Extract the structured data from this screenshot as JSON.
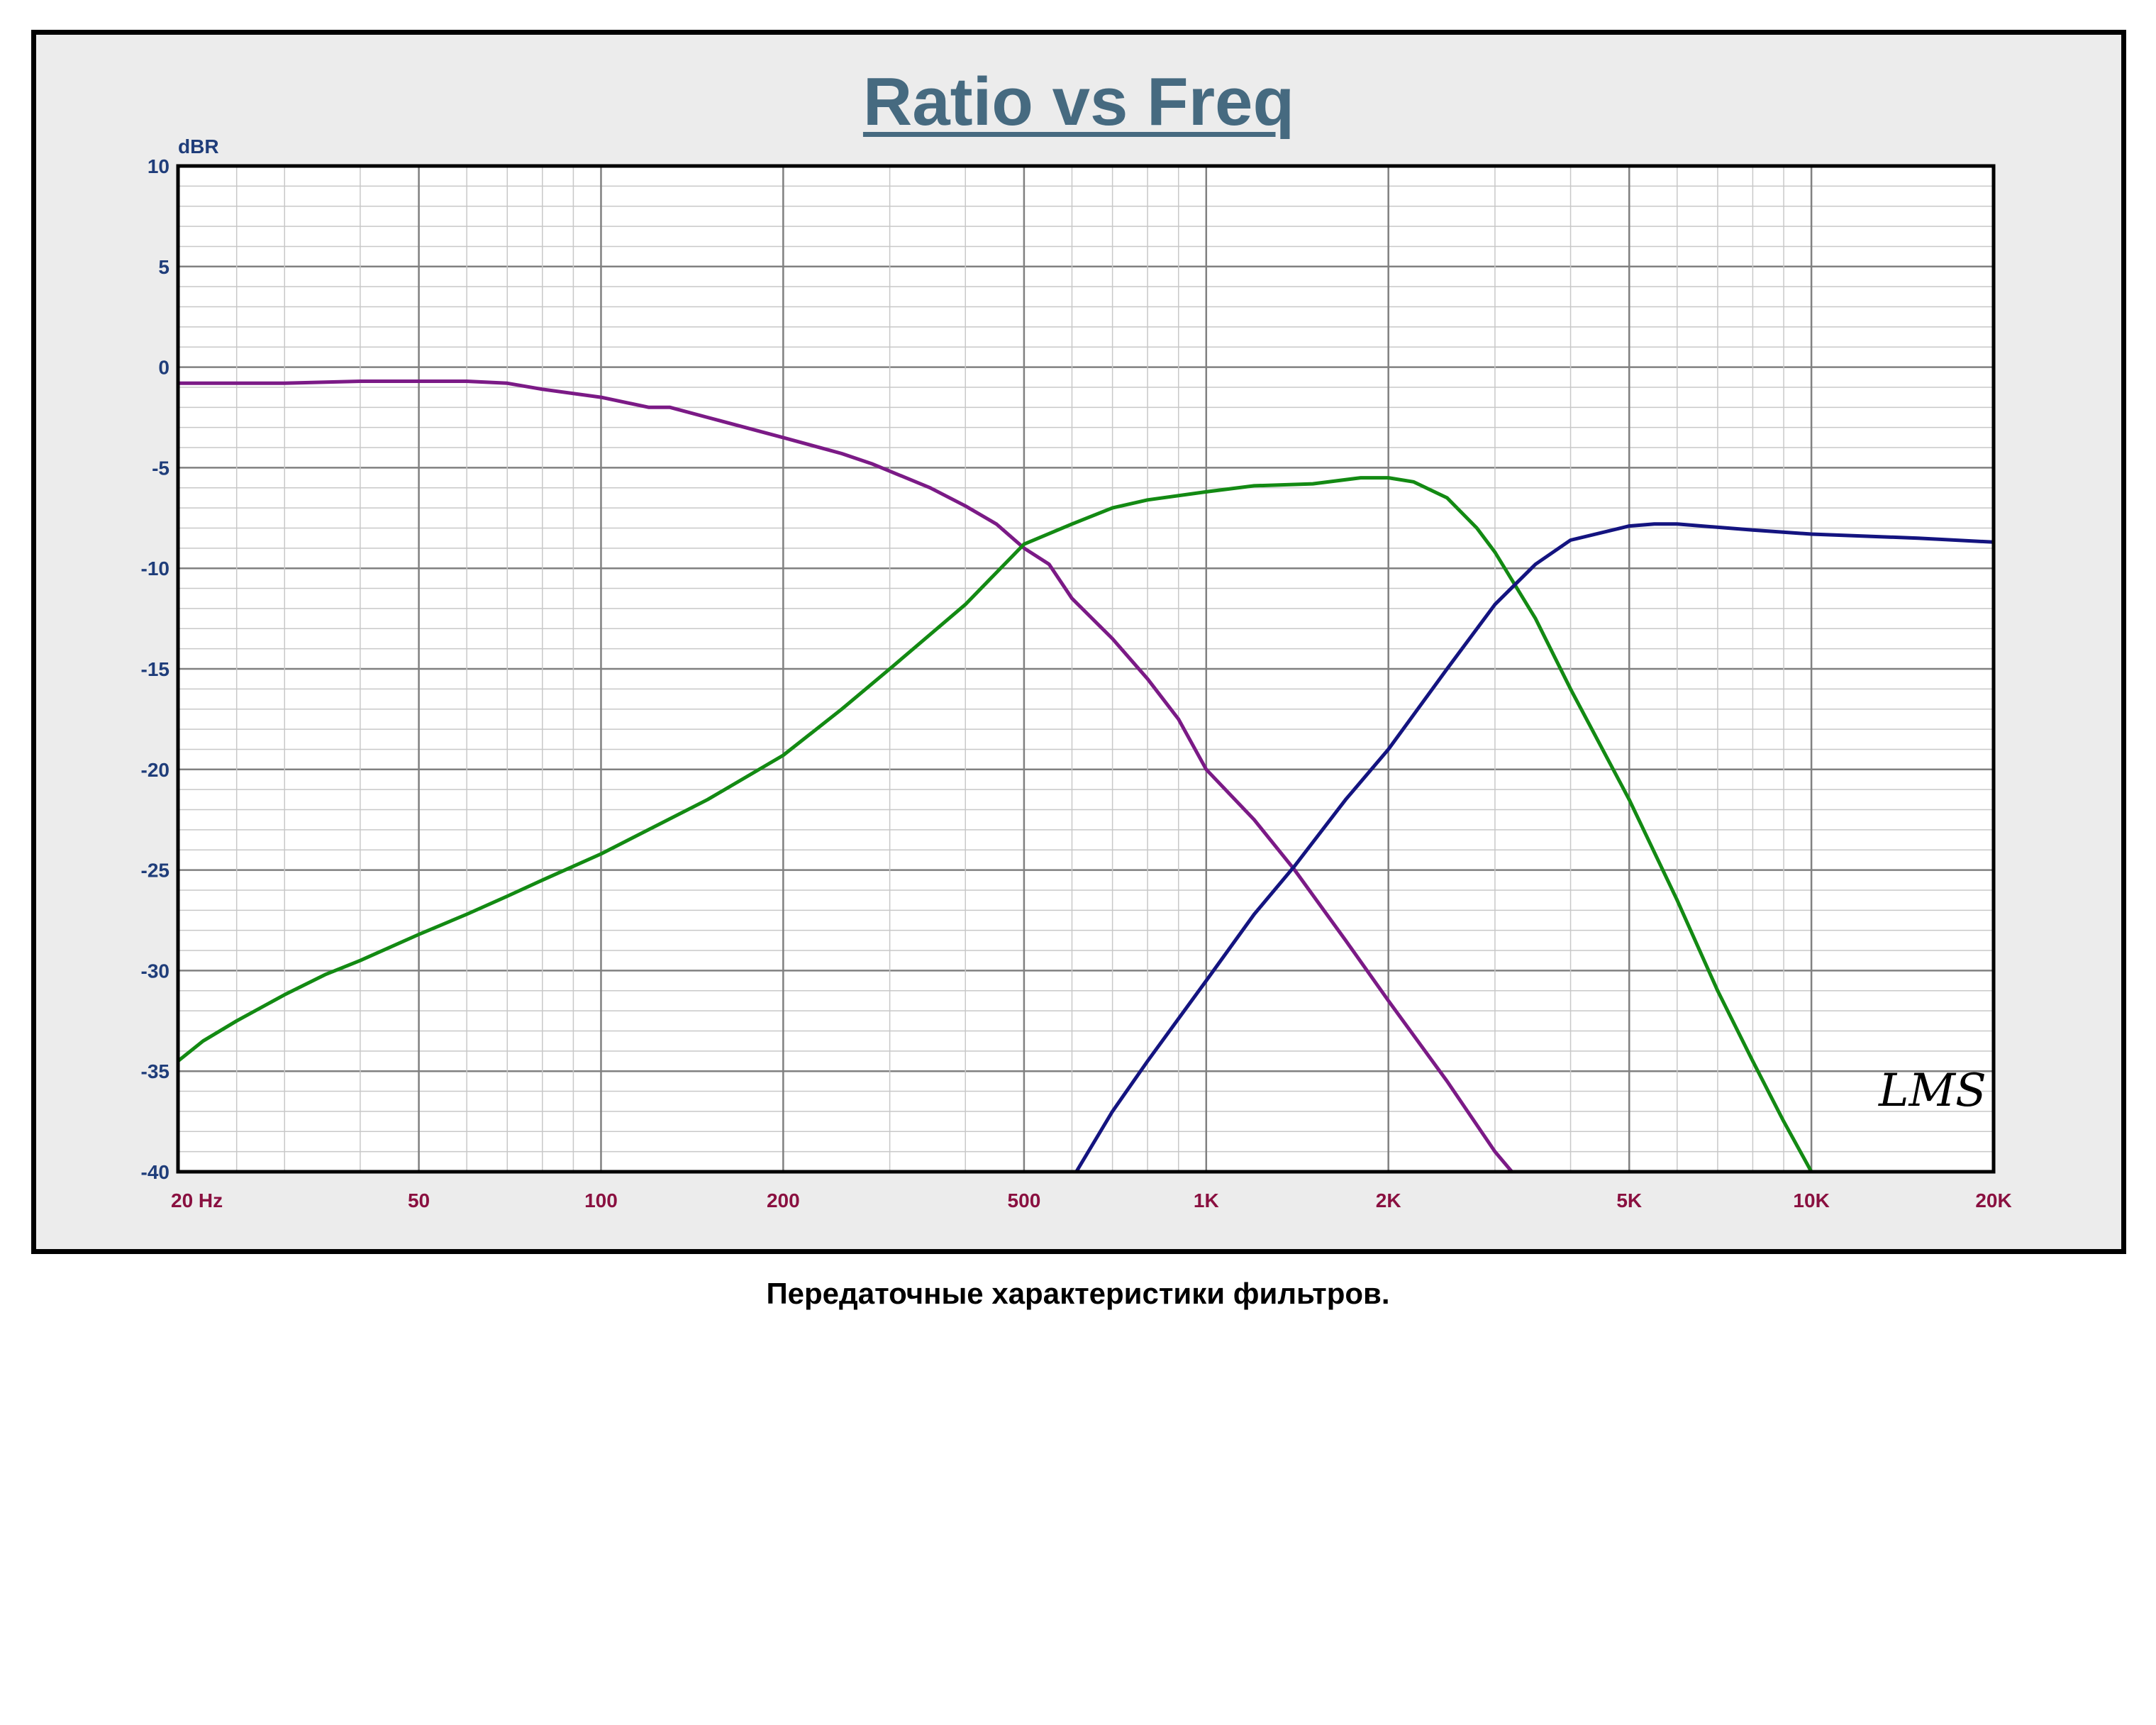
{
  "chart_data": {
    "type": "line",
    "title": "Ratio vs Freq",
    "ylabel": "dBR",
    "xlabel": "",
    "x_scale": "log",
    "xlim": [
      20,
      20000
    ],
    "ylim": [
      -40,
      10
    ],
    "yticks": [
      10,
      5,
      0,
      -5,
      -10,
      -15,
      -20,
      -25,
      -30,
      -35,
      -40
    ],
    "xtick_labels": [
      {
        "value": 20,
        "label": "20  Hz"
      },
      {
        "value": 50,
        "label": "50"
      },
      {
        "value": 100,
        "label": "100"
      },
      {
        "value": 200,
        "label": "200"
      },
      {
        "value": 500,
        "label": "500"
      },
      {
        "value": 1000,
        "label": "1K"
      },
      {
        "value": 2000,
        "label": "2K"
      },
      {
        "value": 5000,
        "label": "5K"
      },
      {
        "value": 10000,
        "label": "10K"
      },
      {
        "value": 20000,
        "label": "20K"
      }
    ],
    "grid": true,
    "series": [
      {
        "color": "#7b1a86",
        "points": [
          [
            20,
            -0.8
          ],
          [
            30,
            -0.8
          ],
          [
            40,
            -0.7
          ],
          [
            50,
            -0.7
          ],
          [
            60,
            -0.7
          ],
          [
            70,
            -0.8
          ],
          [
            80,
            -1.1
          ],
          [
            100,
            -1.5
          ],
          [
            120,
            -2.0
          ],
          [
            130,
            -2.0
          ],
          [
            150,
            -2.5
          ],
          [
            200,
            -3.5
          ],
          [
            250,
            -4.3
          ],
          [
            280,
            -4.8
          ],
          [
            350,
            -6.0
          ],
          [
            400,
            -6.9
          ],
          [
            450,
            -7.8
          ],
          [
            500,
            -9.0
          ],
          [
            550,
            -9.8
          ],
          [
            600,
            -11.5
          ],
          [
            700,
            -13.5
          ],
          [
            800,
            -15.5
          ],
          [
            900,
            -17.5
          ],
          [
            1000,
            -20.0
          ],
          [
            1200,
            -22.5
          ],
          [
            1400,
            -25.0
          ],
          [
            1700,
            -28.5
          ],
          [
            2000,
            -31.5
          ],
          [
            2500,
            -35.5
          ],
          [
            3000,
            -39.0
          ],
          [
            3200,
            -40.0
          ],
          [
            20000,
            -40.0
          ]
        ]
      },
      {
        "color": "#138a13",
        "points": [
          [
            20,
            -34.5
          ],
          [
            22,
            -33.5
          ],
          [
            25,
            -32.5
          ],
          [
            30,
            -31.2
          ],
          [
            35,
            -30.2
          ],
          [
            40,
            -29.5
          ],
          [
            50,
            -28.2
          ],
          [
            60,
            -27.2
          ],
          [
            70,
            -26.3
          ],
          [
            80,
            -25.5
          ],
          [
            100,
            -24.2
          ],
          [
            150,
            -21.5
          ],
          [
            200,
            -19.3
          ],
          [
            250,
            -17.0
          ],
          [
            300,
            -15.0
          ],
          [
            400,
            -11.8
          ],
          [
            500,
            -8.8
          ],
          [
            600,
            -7.8
          ],
          [
            700,
            -7.0
          ],
          [
            800,
            -6.6
          ],
          [
            1000,
            -6.2
          ],
          [
            1200,
            -5.9
          ],
          [
            1500,
            -5.8
          ],
          [
            1800,
            -5.5
          ],
          [
            2000,
            -5.5
          ],
          [
            2200,
            -5.7
          ],
          [
            2500,
            -6.5
          ],
          [
            2800,
            -8.0
          ],
          [
            3000,
            -9.2
          ],
          [
            3500,
            -12.5
          ],
          [
            4000,
            -16.0
          ],
          [
            5000,
            -21.5
          ],
          [
            6000,
            -26.5
          ],
          [
            7000,
            -31.0
          ],
          [
            8000,
            -34.5
          ],
          [
            9000,
            -37.5
          ],
          [
            10000,
            -40.0
          ],
          [
            20000,
            -40.0
          ]
        ]
      },
      {
        "color": "#141480",
        "points": [
          [
            20,
            -40.0
          ],
          [
            610,
            -40.0
          ],
          [
            700,
            -37.0
          ],
          [
            800,
            -34.5
          ],
          [
            1000,
            -30.5
          ],
          [
            1200,
            -27.2
          ],
          [
            1400,
            -24.8
          ],
          [
            1700,
            -21.5
          ],
          [
            2000,
            -19.0
          ],
          [
            2500,
            -15.0
          ],
          [
            3000,
            -11.8
          ],
          [
            3500,
            -9.8
          ],
          [
            4000,
            -8.6
          ],
          [
            5000,
            -7.9
          ],
          [
            5500,
            -7.8
          ],
          [
            6000,
            -7.8
          ],
          [
            8000,
            -8.1
          ],
          [
            10000,
            -8.3
          ],
          [
            15000,
            -8.5
          ],
          [
            20000,
            -8.7
          ]
        ]
      }
    ]
  },
  "caption": "Передаточные характеристики фильтров.",
  "logo": "LMS",
  "colors": {
    "frame_bg": "#ececec",
    "plot_bg": "#ffffff",
    "title": "#466a80",
    "grid_major": "#808080",
    "grid_minor": "#c8c8c8",
    "ytick": "#1f3d7a",
    "xtick": "#8a1040"
  }
}
